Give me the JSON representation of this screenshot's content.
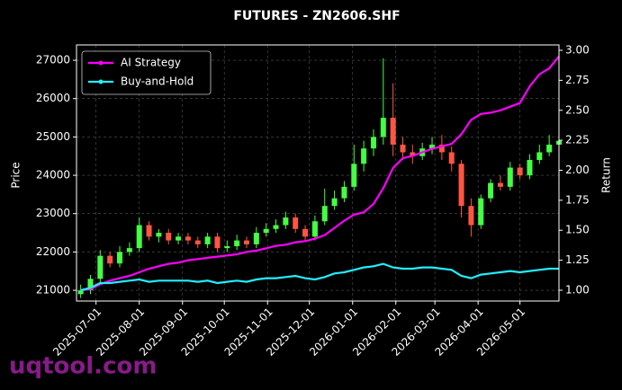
{
  "chart_data": {
    "type": "candlestick",
    "title": "FUTURES - ZN2606.SHF",
    "ylabel": "Price",
    "y2label": "Return",
    "watermark": "uqtool.com",
    "legend": "upper left",
    "grid": true,
    "up_color": "#44ff44",
    "down_color": "#ff5544",
    "x": [
      "2025-06-20",
      "2025-06-27",
      "2025-07-04",
      "2025-07-11",
      "2025-07-18",
      "2025-07-25",
      "2025-08-01",
      "2025-08-08",
      "2025-08-15",
      "2025-08-22",
      "2025-08-29",
      "2025-09-05",
      "2025-09-12",
      "2025-09-19",
      "2025-09-26",
      "2025-10-03",
      "2025-10-10",
      "2025-10-17",
      "2025-10-24",
      "2025-10-31",
      "2025-11-07",
      "2025-11-14",
      "2025-11-21",
      "2025-11-28",
      "2025-12-05",
      "2025-12-12",
      "2025-12-19",
      "2025-12-26",
      "2026-01-02",
      "2026-01-09",
      "2026-01-16",
      "2026-01-23",
      "2026-01-30",
      "2026-02-06",
      "2026-02-13",
      "2026-02-20",
      "2026-02-27",
      "2026-03-06",
      "2026-03-13",
      "2026-03-20",
      "2026-03-27",
      "2026-04-03",
      "2026-04-10",
      "2026-04-17",
      "2026-04-24",
      "2026-05-01",
      "2026-05-08",
      "2026-05-15",
      "2026-05-22",
      "2026-05-29"
    ],
    "open": [
      20900,
      21000,
      21300,
      21900,
      21700,
      22000,
      22100,
      22700,
      22400,
      22500,
      22300,
      22400,
      22300,
      22200,
      22400,
      22100,
      22150,
      22300,
      22200,
      22500,
      22600,
      22700,
      22900,
      22600,
      22400,
      22800,
      23200,
      23400,
      23700,
      24300,
      24700,
      25000,
      25500,
      24800,
      24600,
      24500,
      24700,
      24800,
      24600,
      24300,
      23200,
      22700,
      23400,
      23800,
      23700,
      24200,
      24000,
      24400,
      24600,
      24800
    ],
    "high": [
      21150,
      21400,
      22050,
      22000,
      22150,
      22250,
      22900,
      22800,
      22600,
      22600,
      22500,
      22500,
      22400,
      22500,
      22500,
      22300,
      22450,
      22400,
      22650,
      22750,
      22850,
      23050,
      23000,
      22700,
      22950,
      23650,
      23600,
      23850,
      24800,
      24900,
      25200,
      27050,
      26400,
      25000,
      24800,
      24850,
      25000,
      25050,
      24750,
      24400,
      23400,
      23500,
      23900,
      24000,
      24350,
      24300,
      24550,
      24800,
      25050,
      25100
    ],
    "low": [
      20800,
      20900,
      21200,
      21600,
      21600,
      21900,
      22000,
      22300,
      22250,
      22200,
      22200,
      22200,
      22100,
      22100,
      22000,
      22000,
      22050,
      22100,
      22100,
      22400,
      22500,
      22600,
      22500,
      22300,
      22300,
      22700,
      23100,
      23300,
      23600,
      24100,
      24500,
      24800,
      24500,
      24400,
      24300,
      24400,
      24550,
      24400,
      24100,
      22900,
      22400,
      22600,
      23300,
      23600,
      23600,
      23900,
      23900,
      24300,
      24500,
      24500
    ],
    "close": [
      21000,
      21300,
      21900,
      21700,
      22000,
      22100,
      22700,
      22400,
      22500,
      22300,
      22400,
      22300,
      22200,
      22400,
      22100,
      22150,
      22300,
      22200,
      22500,
      22600,
      22700,
      22900,
      22600,
      22400,
      22800,
      23200,
      23400,
      23700,
      24300,
      24700,
      25000,
      25500,
      24800,
      24600,
      24500,
      24700,
      24800,
      24600,
      24300,
      23200,
      22700,
      23400,
      23800,
      23700,
      24200,
      24000,
      24400,
      24600,
      24800,
      24900
    ],
    "series": [
      {
        "name": "AI Strategy",
        "color": "#ff00ff",
        "axis": "y2",
        "values": [
          1.0,
          1.01,
          1.05,
          1.08,
          1.1,
          1.12,
          1.15,
          1.18,
          1.2,
          1.22,
          1.23,
          1.25,
          1.26,
          1.27,
          1.28,
          1.29,
          1.3,
          1.32,
          1.33,
          1.35,
          1.37,
          1.38,
          1.4,
          1.41,
          1.43,
          1.46,
          1.52,
          1.58,
          1.63,
          1.65,
          1.72,
          1.85,
          2.02,
          2.1,
          2.12,
          2.15,
          2.18,
          2.2,
          2.22,
          2.3,
          2.42,
          2.47,
          2.48,
          2.5,
          2.53,
          2.56,
          2.7,
          2.8,
          2.85,
          2.95
        ]
      },
      {
        "name": "Buy-and-Hold",
        "color": "#22eeff",
        "axis": "y2",
        "values": [
          1.0,
          1.02,
          1.06,
          1.06,
          1.07,
          1.08,
          1.09,
          1.07,
          1.08,
          1.08,
          1.08,
          1.08,
          1.07,
          1.08,
          1.06,
          1.07,
          1.08,
          1.07,
          1.09,
          1.1,
          1.1,
          1.11,
          1.12,
          1.1,
          1.09,
          1.11,
          1.14,
          1.15,
          1.17,
          1.19,
          1.2,
          1.22,
          1.19,
          1.18,
          1.18,
          1.19,
          1.19,
          1.18,
          1.17,
          1.12,
          1.1,
          1.13,
          1.14,
          1.15,
          1.16,
          1.15,
          1.16,
          1.17,
          1.18,
          1.18
        ]
      }
    ],
    "xlim": [
      "2025-06-17",
      "2026-05-29"
    ],
    "xticks": [
      "2025-07-01",
      "2025-08-01",
      "2025-09-01",
      "2025-10-01",
      "2025-11-01",
      "2025-12-01",
      "2026-01-01",
      "2026-02-01",
      "2026-03-01",
      "2026-04-01",
      "2026-05-01"
    ],
    "ylim": [
      20720,
      27400
    ],
    "yticks": [
      21000,
      22000,
      23000,
      24000,
      25000,
      26000,
      27000
    ],
    "y2lim": [
      0.91,
      3.045
    ],
    "y2ticks": [
      {
        "value": 1,
        "label": "1.00"
      },
      {
        "value": 1.25,
        "label": "1.25"
      },
      {
        "value": 1.5,
        "label": "1.50"
      },
      {
        "value": 1.75,
        "label": "1.75"
      },
      {
        "value": 2,
        "label": "2.00"
      },
      {
        "value": 2.25,
        "label": "2.25"
      },
      {
        "value": 2.5,
        "label": "2.50"
      },
      {
        "value": 2.75,
        "label": "2.75"
      },
      {
        "value": 3,
        "label": "3.00"
      }
    ]
  }
}
